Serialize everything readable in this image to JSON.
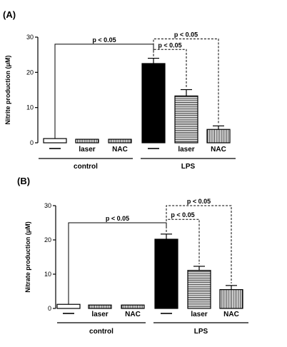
{
  "chart_data": [
    {
      "type": "bar",
      "panel_label": "(A)",
      "ylabel": "Nitrite production (μM)",
      "ylim": [
        0,
        30
      ],
      "yticks": [
        0,
        10,
        20,
        30
      ],
      "categories": [
        "—",
        "laser",
        "NAC",
        "—",
        "laser",
        "NAC"
      ],
      "groups": [
        {
          "label": "control",
          "members": [
            0,
            1,
            2
          ]
        },
        {
          "label": "LPS",
          "members": [
            3,
            4,
            5
          ]
        }
      ],
      "values": [
        1.2,
        1.0,
        1.0,
        22.5,
        13.3,
        3.8
      ],
      "errors": [
        0,
        0,
        0,
        1.5,
        1.8,
        1.0
      ],
      "fills": [
        "white",
        "vstripe",
        "vstripe",
        "black",
        "hstripe",
        "vstripe"
      ],
      "significance": [
        {
          "from": 0,
          "to": 3,
          "label": "p < 0.05",
          "style": "solid",
          "level": 28
        },
        {
          "from": 3,
          "to": 4,
          "label": "p < 0.05",
          "style": "dashed",
          "level": 26.5
        },
        {
          "from": 3,
          "to": 5,
          "label": "p < 0.05",
          "style": "dashed",
          "level": 29.5
        }
      ]
    },
    {
      "type": "bar",
      "panel_label": "(B)",
      "ylabel": "Nitrate production (μM)",
      "ylim": [
        0,
        30
      ],
      "yticks": [
        0,
        10,
        20,
        30
      ],
      "categories": [
        "—",
        "laser",
        "NAC",
        "—",
        "laser",
        "NAC"
      ],
      "groups": [
        {
          "label": "control",
          "members": [
            0,
            1,
            2
          ]
        },
        {
          "label": "LPS",
          "members": [
            3,
            4,
            5
          ]
        }
      ],
      "values": [
        1.2,
        1.0,
        1.0,
        20.2,
        11.1,
        5.5
      ],
      "errors": [
        0,
        0,
        0,
        1.5,
        1.2,
        1.2
      ],
      "fills": [
        "white",
        "vstripe",
        "vstripe",
        "black",
        "hstripe",
        "vstripe"
      ],
      "significance": [
        {
          "from": 0,
          "to": 3,
          "label": "p < 0.05",
          "style": "solid",
          "level": 25
        },
        {
          "from": 3,
          "to": 4,
          "label": "p < 0.05",
          "style": "dashed",
          "level": 26
        },
        {
          "from": 3,
          "to": 5,
          "label": "p < 0.05",
          "style": "dashed",
          "level": 30
        }
      ]
    }
  ]
}
